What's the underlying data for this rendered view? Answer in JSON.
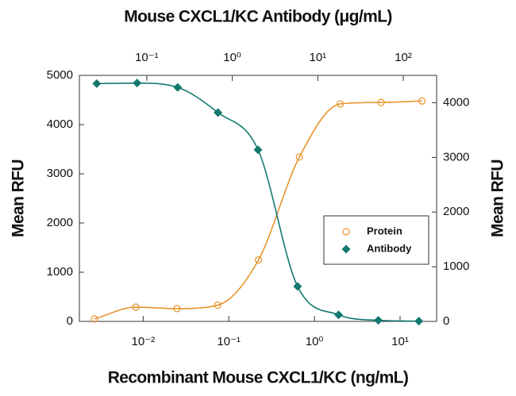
{
  "chart_data": {
    "type": "scatter",
    "title": "Mouse CXCL1/KC Antibody (μg/mL)",
    "xlabel": "Recombinant Mouse CXCL1/KC (ng/mL)",
    "ylabel": "Mean RFU",
    "y2label": "Mean RFU",
    "xscale": "log",
    "xlim": [
      0.0018,
      26.7
    ],
    "xticks": [
      {
        "value": 0.01,
        "label": "10⁻²"
      },
      {
        "value": 0.1,
        "label": "10⁻¹"
      },
      {
        "value": 1,
        "label": "10⁰"
      },
      {
        "value": 10,
        "label": "10¹"
      }
    ],
    "x2lim": [
      0.0163,
      245
    ],
    "x2ticks": [
      {
        "value": 0.1,
        "label": "10⁻¹"
      },
      {
        "value": 1,
        "label": "10⁰"
      },
      {
        "value": 10,
        "label": "10¹"
      },
      {
        "value": 100,
        "label": "10²"
      }
    ],
    "ylim": [
      0,
      5000
    ],
    "yticks": [
      0,
      1000,
      2000,
      3000,
      4000,
      5000
    ],
    "y2lim": [
      0,
      4500
    ],
    "y2ticks": [
      0,
      1000,
      2000,
      3000,
      4000
    ],
    "legend": "right",
    "series": [
      {
        "name": "Protein",
        "color": "#e8932a",
        "marker": "circle-open",
        "axis": "y",
        "xaxis": "x",
        "x": [
          0.0027,
          0.0082,
          0.0247,
          0.074,
          0.222,
          0.667,
          2,
          6,
          18
        ],
        "values": [
          50,
          290,
          260,
          330,
          1250,
          3340,
          4420,
          4450,
          4480
        ]
      },
      {
        "name": "Antibody",
        "color": "#13786f",
        "marker": "diamond",
        "axis": "y2",
        "xaxis": "x2",
        "x": [
          0.026,
          0.077,
          0.23,
          0.68,
          2,
          5.8,
          17.5,
          51,
          152
        ],
        "values": [
          4350,
          4360,
          4280,
          3820,
          3140,
          640,
          120,
          20,
          5
        ]
      }
    ]
  }
}
